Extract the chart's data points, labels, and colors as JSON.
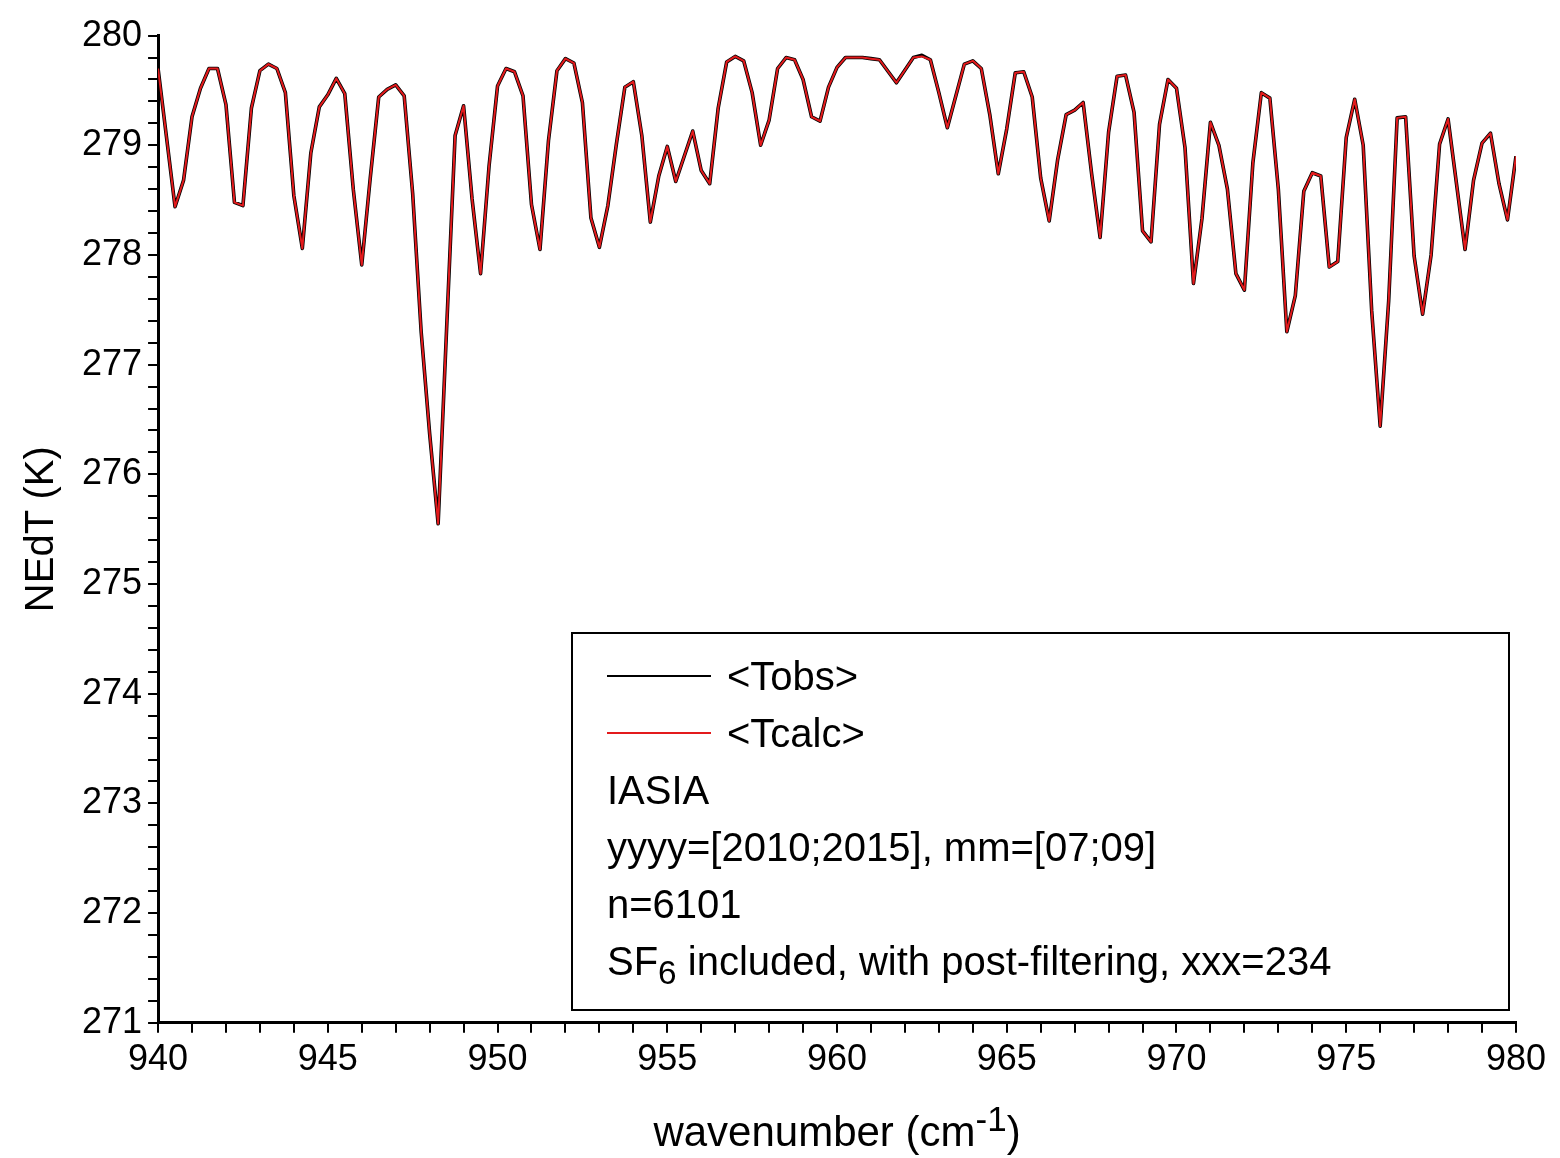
{
  "chart_data": {
    "type": "line",
    "xlabel": "wavenumber (cm$^{-1}$)",
    "ylabel": "NEdT (K)",
    "x": [
      940,
      940.5,
      940.75,
      941,
      941.25,
      941.5,
      941.75,
      942,
      942.25,
      942.5,
      942.75,
      943,
      943.25,
      943.5,
      943.75,
      944,
      944.25,
      944.5,
      944.75,
      945,
      945.25,
      945.5,
      945.75,
      946,
      946.25,
      946.5,
      946.75,
      947,
      947.25,
      947.5,
      947.75,
      948,
      948.25,
      948.5,
      948.75,
      949,
      949.25,
      949.5,
      949.75,
      950,
      950.25,
      950.5,
      950.75,
      951,
      951.25,
      951.5,
      951.75,
      952,
      952.25,
      952.5,
      952.75,
      953,
      953.25,
      953.5,
      953.75,
      954,
      954.25,
      954.5,
      954.75,
      955,
      955.25,
      955.75,
      956,
      956.25,
      956.5,
      956.75,
      957,
      957.25,
      957.5,
      957.75,
      958,
      958.25,
      958.5,
      958.75,
      959,
      959.25,
      959.5,
      959.75,
      960,
      960.25,
      960.5,
      960.75,
      961,
      961.25,
      961.75,
      962.25,
      962.5,
      962.75,
      963,
      963.25,
      963.75,
      964,
      964.25,
      964.5,
      964.75,
      965,
      965.25,
      965.5,
      965.75,
      966,
      966.25,
      966.5,
      966.75,
      967,
      967.25,
      967.5,
      967.75,
      968,
      968.25,
      968.5,
      968.75,
      969,
      969.25,
      969.5,
      969.75,
      970,
      970.25,
      970.5,
      970.75,
      971,
      971.25,
      971.5,
      971.75,
      972,
      972.25,
      972.5,
      972.75,
      973,
      973.25,
      973.5,
      973.75,
      974,
      974.25,
      974.5,
      974.75,
      975,
      975.25,
      975.5,
      975.75,
      976,
      976.25,
      976.5,
      976.75,
      977,
      977.25,
      977.5,
      977.75,
      978,
      978.5,
      978.75,
      979,
      979.25,
      979.5,
      979.75,
      980
    ],
    "series": [
      {
        "name": "<Tobs>",
        "color": "#000000",
        "values": [
          279.7,
          278.44,
          278.68,
          279.26,
          279.52,
          279.7,
          279.7,
          279.37,
          278.48,
          278.45,
          279.34,
          279.68,
          279.74,
          279.7,
          279.48,
          278.54,
          278.06,
          278.93,
          279.35,
          279.46,
          279.61,
          279.47,
          278.6,
          277.91,
          278.7,
          279.44,
          279.51,
          279.55,
          279.45,
          278.56,
          277.3,
          276.37,
          275.55,
          277.33,
          279.09,
          279.36,
          278.51,
          277.83,
          278.81,
          279.54,
          279.7,
          279.67,
          279.45,
          278.46,
          278.05,
          279.04,
          279.68,
          279.79,
          279.75,
          279.39,
          278.34,
          278.07,
          278.45,
          279.01,
          279.53,
          279.58,
          279.09,
          278.3,
          278.72,
          278.99,
          278.67,
          279.13,
          278.77,
          278.65,
          279.34,
          279.76,
          279.81,
          279.77,
          279.48,
          279.0,
          279.23,
          279.7,
          279.8,
          279.78,
          279.6,
          279.26,
          279.22,
          279.53,
          279.71,
          279.8,
          279.8,
          279.8,
          279.79,
          279.78,
          279.57,
          279.8,
          279.82,
          279.78,
          279.48,
          279.16,
          279.74,
          279.77,
          279.7,
          279.28,
          278.74,
          279.15,
          279.66,
          279.67,
          279.44,
          278.7,
          278.31,
          278.87,
          279.28,
          279.32,
          279.39,
          278.74,
          278.16,
          279.12,
          279.63,
          279.64,
          279.3,
          278.22,
          278.12,
          279.19,
          279.6,
          279.52,
          278.98,
          277.74,
          278.33,
          279.21,
          279.0,
          278.6,
          277.83,
          277.68,
          278.84,
          279.48,
          279.43,
          278.6,
          277.3,
          277.63,
          278.58,
          278.75,
          278.72,
          277.89,
          277.94,
          279.07,
          279.42,
          279.0,
          277.49,
          276.44,
          277.58,
          279.25,
          279.26,
          277.99,
          277.46,
          278.0,
          279.01,
          279.24,
          278.05,
          278.68,
          279.02,
          279.11,
          278.65,
          278.32,
          278.9
        ]
      },
      {
        "name": "<Tcalc>",
        "color": "#e31a1c",
        "values": [
          279.7,
          278.44,
          278.68,
          279.26,
          279.52,
          279.7,
          279.7,
          279.37,
          278.48,
          278.45,
          279.34,
          279.68,
          279.74,
          279.7,
          279.48,
          278.54,
          278.06,
          278.93,
          279.35,
          279.46,
          279.61,
          279.47,
          278.6,
          277.91,
          278.7,
          279.44,
          279.51,
          279.55,
          279.45,
          278.56,
          277.3,
          276.37,
          275.55,
          277.33,
          279.09,
          279.36,
          278.51,
          277.83,
          278.81,
          279.54,
          279.7,
          279.67,
          279.45,
          278.46,
          278.05,
          279.04,
          279.68,
          279.79,
          279.75,
          279.39,
          278.34,
          278.07,
          278.45,
          279.01,
          279.53,
          279.58,
          279.09,
          278.3,
          278.72,
          278.99,
          278.67,
          279.13,
          278.77,
          278.65,
          279.34,
          279.76,
          279.81,
          279.77,
          279.48,
          279.0,
          279.23,
          279.7,
          279.8,
          279.78,
          279.6,
          279.26,
          279.22,
          279.53,
          279.71,
          279.8,
          279.8,
          279.8,
          279.79,
          279.78,
          279.57,
          279.8,
          279.81,
          279.78,
          279.48,
          279.16,
          279.74,
          279.77,
          279.7,
          279.28,
          278.74,
          279.15,
          279.66,
          279.67,
          279.44,
          278.7,
          278.31,
          278.87,
          279.28,
          279.32,
          279.39,
          278.74,
          278.16,
          279.12,
          279.63,
          279.64,
          279.3,
          278.22,
          278.12,
          279.19,
          279.6,
          279.52,
          278.98,
          277.74,
          278.33,
          279.21,
          279.0,
          278.6,
          277.83,
          277.68,
          278.84,
          279.48,
          279.43,
          278.6,
          277.3,
          277.63,
          278.58,
          278.75,
          278.72,
          277.89,
          277.94,
          279.07,
          279.42,
          279.0,
          277.49,
          276.44,
          277.58,
          279.25,
          279.26,
          277.99,
          277.46,
          278.0,
          279.01,
          279.24,
          278.05,
          278.68,
          279.02,
          279.11,
          278.65,
          278.32,
          278.9
        ]
      }
    ],
    "xlim": [
      940,
      980
    ],
    "xticks": [
      940,
      {
        "value": 941,
        "label": null
      },
      {
        "value": 942,
        "label": null
      },
      {
        "value": 943,
        "label": null
      },
      {
        "value": 944,
        "label": null
      },
      945,
      {
        "value": 946,
        "label": null
      },
      {
        "value": 947,
        "label": null
      },
      {
        "value": 948,
        "label": null
      },
      {
        "value": 949,
        "label": null
      },
      950,
      {
        "value": 951,
        "label": null
      },
      {
        "value": 952,
        "label": null
      },
      {
        "value": 953,
        "label": null
      },
      {
        "value": 954,
        "label": null
      },
      955,
      {
        "value": 956,
        "label": null
      },
      {
        "value": 957,
        "label": null
      },
      {
        "value": 958,
        "label": null
      },
      {
        "value": 959,
        "label": null
      },
      960,
      {
        "value": 961,
        "label": null
      },
      {
        "value": 962,
        "label": null
      },
      {
        "value": 963,
        "label": null
      },
      {
        "value": 964,
        "label": null
      },
      965,
      {
        "value": 966,
        "label": null
      },
      {
        "value": 967,
        "label": null
      },
      {
        "value": 968,
        "label": null
      },
      {
        "value": 969,
        "label": null
      },
      970,
      {
        "value": 971,
        "label": null
      },
      {
        "value": 972,
        "label": null
      },
      {
        "value": 973,
        "label": null
      },
      {
        "value": 974,
        "label": null
      },
      975,
      {
        "value": 976,
        "label": null
      },
      {
        "value": 977,
        "label": null
      },
      {
        "value": 978,
        "label": null
      },
      {
        "value": 979,
        "label": null
      },
      980
    ],
    "ylim": [
      271,
      280
    ],
    "yticks": [
      271,
      {
        "value": 271.2,
        "label": null
      },
      {
        "value": 271.4,
        "label": null
      },
      {
        "value": 271.6,
        "label": null
      },
      {
        "value": 271.8,
        "label": null
      },
      272,
      {
        "value": 272.2,
        "label": null
      },
      {
        "value": 272.4,
        "label": null
      },
      {
        "value": 272.6,
        "label": null
      },
      {
        "value": 272.8,
        "label": null
      },
      273,
      {
        "value": 273.2,
        "label": null
      },
      {
        "value": 273.4,
        "label": null
      },
      {
        "value": 273.6,
        "label": null
      },
      {
        "value": 273.8,
        "label": null
      },
      274,
      {
        "value": 274.2,
        "label": null
      },
      {
        "value": 274.4,
        "label": null
      },
      {
        "value": 274.6,
        "label": null
      },
      {
        "value": 274.8,
        "label": null
      },
      275,
      {
        "value": 275.2,
        "label": null
      },
      {
        "value": 275.4,
        "label": null
      },
      {
        "value": 275.6,
        "label": null
      },
      {
        "value": 275.8,
        "label": null
      },
      276,
      {
        "value": 276.2,
        "label": null
      },
      {
        "value": 276.4,
        "label": null
      },
      {
        "value": 276.6,
        "label": null
      },
      {
        "value": 276.8,
        "label": null
      },
      277,
      {
        "value": 277.2,
        "label": null
      },
      {
        "value": 277.4,
        "label": null
      },
      {
        "value": 277.6,
        "label": null
      },
      {
        "value": 277.8,
        "label": null
      },
      278,
      {
        "value": 278.2,
        "label": null
      },
      {
        "value": 278.4,
        "label": null
      },
      {
        "value": 278.6,
        "label": null
      },
      {
        "value": 278.8,
        "label": null
      },
      279,
      {
        "value": 279.2,
        "label": null
      },
      {
        "value": 279.4,
        "label": null
      },
      {
        "value": 279.6,
        "label": null
      },
      {
        "value": 279.8,
        "label": null
      },
      280
    ],
    "grid": false,
    "legend": "bottom",
    "marker": "none",
    "line_style": "solid",
    "annotations": [
      "IASIA",
      "yyyy=[2010;2015], mm=[07;09]",
      "n=6101",
      "SF$_{6}$ included, with post-filtering, xxx=234"
    ]
  }
}
